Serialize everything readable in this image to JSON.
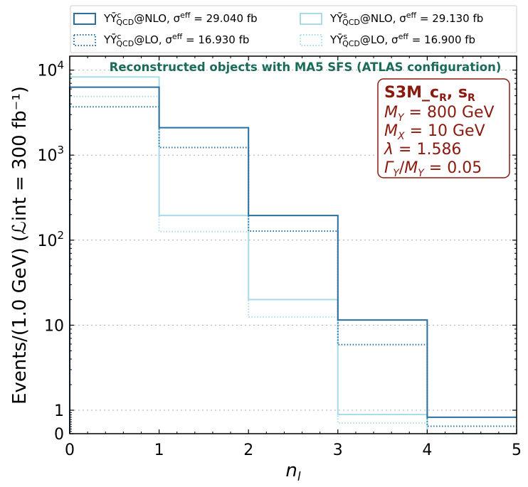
{
  "chart_data": {
    "type": "step-histogram",
    "subtitle": "Reconstructed objects with MA5 SFS (ATLAS configuration)",
    "xlabel": "n",
    "xlabel_sub": "l",
    "ylabel": "Events/(1.0 GeV) (ℒint = 300 fb⁻¹)",
    "xlim": [
      0,
      5
    ],
    "yscale": "symlog",
    "bin_edges": [
      0,
      1,
      2,
      3,
      4,
      5
    ],
    "x_ticks": [
      "0",
      "1",
      "2",
      "3",
      "4",
      "5"
    ],
    "y_ticks": [
      {
        "value": 0,
        "label": "0",
        "base": "0",
        "exp": ""
      },
      {
        "value": 1,
        "label": "1",
        "base": "1",
        "exp": ""
      },
      {
        "value": 10,
        "label": "10",
        "base": "10",
        "exp": ""
      },
      {
        "value": 100,
        "label": "10²",
        "base": "10",
        "exp": "2"
      },
      {
        "value": 1000,
        "label": "10³",
        "base": "10",
        "exp": "3"
      },
      {
        "value": 10000,
        "label": "10⁴",
        "base": "10",
        "exp": "4"
      }
    ],
    "series": [
      {
        "name": "YȲᶜ_QCD@NLO",
        "label_main": "YȲ",
        "label_sup": "c",
        "label_sub": "QCD",
        "label_suffix": "@NLO,",
        "sigma": "σᵉᶠᶠ = 29.040 fb",
        "sigma_text": "29.040 fb",
        "color": "#2a6fa0",
        "style": "solid",
        "values": [
          6300,
          2100,
          195,
          11.5,
          0.7
        ]
      },
      {
        "name": "YȲᶜ_QCD@LO",
        "label_main": "YȲ",
        "label_sup": "c",
        "label_sub": "QCD",
        "label_suffix": "@LO,",
        "sigma": "σᵉᶠᶠ = 16.930 fb",
        "sigma_text": "16.930 fb",
        "color": "#2a6fa0",
        "style": "dotted",
        "values": [
          3700,
          1230,
          128,
          5.9,
          0.32
        ]
      },
      {
        "name": "YȲˢ_QCD@NLO",
        "label_main": "YȲ",
        "label_sup": "s",
        "label_sub": "QCD",
        "label_suffix": "@NLO,",
        "sigma": "σᵉᶠᶠ = 29.130 fb",
        "sigma_text": "29.130 fb",
        "color": "#a8dce8",
        "style": "solid",
        "values": [
          8300,
          195,
          20,
          0.82,
          0.0
        ]
      },
      {
        "name": "YȲˢ_QCD@LO",
        "label_main": "YȲ",
        "label_sup": "s",
        "label_sub": "QCD",
        "label_suffix": "@LO,",
        "sigma": "σᵉᶠᶠ = 16.900 fb",
        "sigma_text": "16.900 fb",
        "color": "#a8dce8",
        "style": "dotted",
        "values": [
          4900,
          126,
          12.5,
          0.45,
          0.0
        ]
      }
    ],
    "annotation": {
      "title": "S3M_c_R, s_R",
      "title_main": "S3M_",
      "title_c": "c",
      "title_s": "s",
      "title_sub": "R",
      "lines": [
        {
          "text": "M_Y = 800 GeV",
          "var": "M",
          "sub": "Y",
          "rest": " = 800 GeV"
        },
        {
          "text": "M_X = 10 GeV",
          "var": "M",
          "sub": "X",
          "rest": " = 10 GeV"
        },
        {
          "text": "λ = 1.586",
          "var": "λ",
          "sub": "",
          "rest": " = 1.586"
        },
        {
          "text": "Γ_Y/M_Y = 0.05",
          "var": "Γ",
          "sub": "Y",
          "rest": "/",
          "var2": "M",
          "sub2": "Y",
          "rest2": " = 0.05"
        }
      ],
      "color": "#8b1a0e"
    },
    "colors": {
      "subtitle": "#1b6b5a",
      "grid": "#b0b0b0"
    }
  }
}
